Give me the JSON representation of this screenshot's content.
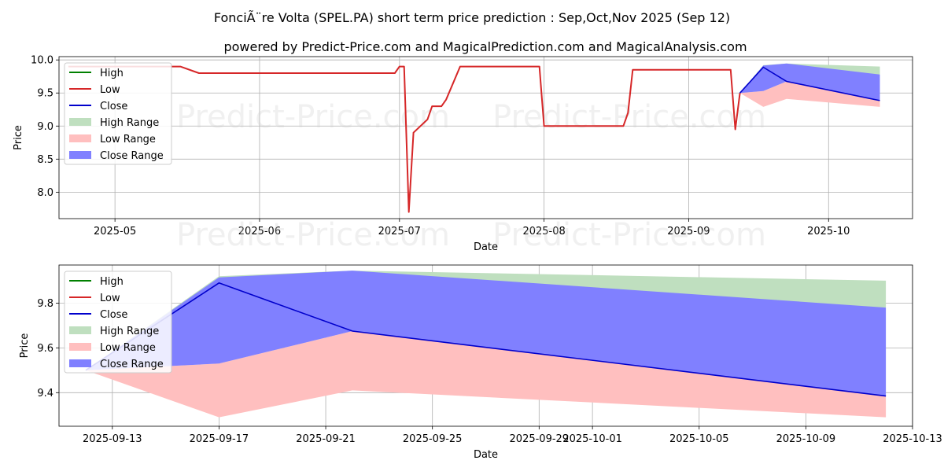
{
  "title": "FonciÃ¨re Volta (SPEL.PA) short term price prediction : Sep,Oct,Nov 2025 (Sep 12)",
  "subtitle": "powered by Predict-Price.com and MagicalPrediction.com and MagicalAnalysis.com",
  "watermark": "Predict-Price.com",
  "colors": {
    "high": "#008000",
    "low": "#d62728",
    "close": "#0000cc",
    "high_range": "#bfdfbf",
    "low_range": "#ffbfbf",
    "close_range": "#8080ff"
  },
  "legend": [
    {
      "label": "High",
      "kind": "line",
      "color_key": "high"
    },
    {
      "label": "Low",
      "kind": "line",
      "color_key": "low"
    },
    {
      "label": "Close",
      "kind": "line",
      "color_key": "close"
    },
    {
      "label": "High Range",
      "kind": "patch",
      "color_key": "high_range"
    },
    {
      "label": "Low Range",
      "kind": "patch",
      "color_key": "low_range"
    },
    {
      "label": "Close Range",
      "kind": "patch",
      "color_key": "close_range"
    }
  ],
  "chart_data": [
    {
      "type": "line",
      "xlabel": "Date",
      "ylabel": "Price",
      "xlim": [
        "2025-04-19",
        "2025-10-19"
      ],
      "ylim": [
        7.6,
        10.05
      ],
      "x_ticks": [
        "2025-05-01",
        "2025-06-01",
        "2025-07-01",
        "2025-08-01",
        "2025-09-01",
        "2025-10-01"
      ],
      "x_tick_labels": [
        "2025-05",
        "2025-06",
        "2025-07",
        "2025-08",
        "2025-09",
        "2025-10"
      ],
      "y_ticks": [
        8.0,
        8.5,
        9.0,
        9.5,
        10.0
      ],
      "y_tick_labels": [
        "8.0",
        "8.5",
        "9.0",
        "9.5",
        "10.0"
      ],
      "grid": true,
      "legend_position": "top-left",
      "series": [
        {
          "name": "Low",
          "color_key": "low",
          "points": [
            [
              "2025-04-21",
              9.9
            ],
            [
              "2025-05-15",
              9.9
            ],
            [
              "2025-05-19",
              9.8
            ],
            [
              "2025-06-30",
              9.8
            ],
            [
              "2025-07-01",
              9.9
            ],
            [
              "2025-07-02",
              9.9
            ],
            [
              "2025-07-03",
              7.7
            ],
            [
              "2025-07-04",
              8.9
            ],
            [
              "2025-07-07",
              9.1
            ],
            [
              "2025-07-08",
              9.3
            ],
            [
              "2025-07-10",
              9.3
            ],
            [
              "2025-07-11",
              9.4
            ],
            [
              "2025-07-14",
              9.9
            ],
            [
              "2025-07-31",
              9.9
            ],
            [
              "2025-08-01",
              9.0
            ],
            [
              "2025-08-18",
              9.0
            ],
            [
              "2025-08-19",
              9.2
            ],
            [
              "2025-08-20",
              9.85
            ],
            [
              "2025-09-10",
              9.85
            ],
            [
              "2025-09-11",
              8.95
            ],
            [
              "2025-09-12",
              9.5
            ]
          ]
        }
      ],
      "forecast": {
        "dates": [
          "2025-09-12",
          "2025-09-17",
          "2025-09-22",
          "2025-10-12"
        ],
        "close": [
          9.5,
          9.89,
          9.675,
          9.385
        ],
        "high_range": {
          "upper": [
            9.5,
            9.92,
            9.945,
            9.9
          ],
          "lower": [
            9.5,
            9.54,
            9.68,
            9.78
          ]
        },
        "low_range": {
          "upper": [
            9.5,
            9.53,
            9.675,
            9.39
          ],
          "lower": [
            9.5,
            9.29,
            9.41,
            9.29
          ]
        },
        "close_range": {
          "upper": [
            9.5,
            9.915,
            9.945,
            9.78
          ],
          "lower": [
            9.5,
            9.53,
            9.675,
            9.385
          ]
        }
      }
    },
    {
      "type": "area",
      "xlabel": "Date",
      "ylabel": "Price",
      "xlim": [
        "2025-09-11",
        "2025-10-13"
      ],
      "ylim": [
        9.25,
        9.97
      ],
      "x_ticks": [
        "2025-09-13",
        "2025-09-17",
        "2025-09-21",
        "2025-09-25",
        "2025-09-29",
        "2025-10-01",
        "2025-10-05",
        "2025-10-09",
        "2025-10-13"
      ],
      "x_tick_labels": [
        "2025-09-13",
        "2025-09-17",
        "2025-09-21",
        "2025-09-25",
        "2025-09-29",
        "2025-10-01",
        "2025-10-05",
        "2025-10-09",
        "2025-10-13"
      ],
      "y_ticks": [
        9.4,
        9.6,
        9.8
      ],
      "y_tick_labels": [
        "9.4",
        "9.6",
        "9.8"
      ],
      "grid": true,
      "legend_position": "top-left",
      "forecast": {
        "dates": [
          "2025-09-12",
          "2025-09-17",
          "2025-09-22",
          "2025-10-12"
        ],
        "close": [
          9.5,
          9.89,
          9.675,
          9.385
        ],
        "high_range": {
          "upper": [
            9.5,
            9.92,
            9.945,
            9.9
          ],
          "lower": [
            9.5,
            9.54,
            9.68,
            9.78
          ]
        },
        "low_range": {
          "upper": [
            9.5,
            9.53,
            9.675,
            9.39
          ],
          "lower": [
            9.5,
            9.29,
            9.41,
            9.29
          ]
        },
        "close_range": {
          "upper": [
            9.5,
            9.915,
            9.945,
            9.78
          ],
          "lower": [
            9.5,
            9.53,
            9.675,
            9.385
          ]
        }
      }
    }
  ]
}
